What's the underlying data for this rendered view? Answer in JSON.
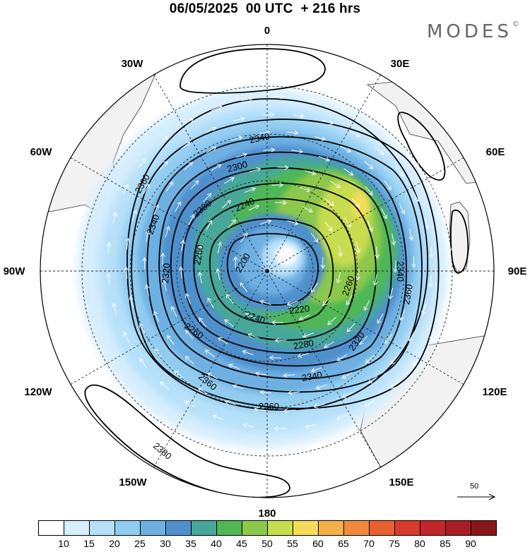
{
  "header": {
    "title": "06/05/2025  00 UTC  + 216 hrs",
    "brand": "MODES",
    "brand_mark": "©"
  },
  "map": {
    "projection": "polar-stereographic-south",
    "longitude_labels": [
      "0",
      "30E",
      "60E",
      "90E",
      "120E",
      "150E",
      "180",
      "150W",
      "120W",
      "90W",
      "60W",
      "30W"
    ],
    "contour_labels": [
      "2340",
      "2360",
      "2300",
      "2340",
      "2380",
      "2240",
      "2260",
      "2200",
      "2320",
      "2340",
      "2260",
      "2360",
      "2220",
      "2240",
      "2260",
      "2280",
      "2320",
      "2340",
      "2360",
      "2360",
      "2380"
    ],
    "land_color": "#f2f2f2",
    "coast_color": "#333333",
    "grid_style": "dashed"
  },
  "vector_reference": {
    "label": "50"
  },
  "legend": {
    "colors": [
      "#ffffff",
      "#d6eefd",
      "#b7e1fa",
      "#92ccf0",
      "#6eb0e2",
      "#4f90cc",
      "#47a89a",
      "#4fb756",
      "#8cc84c",
      "#c8dc4f",
      "#f5dc5a",
      "#f5b04a",
      "#ef8a3d",
      "#e9612f",
      "#d93a2a",
      "#c22628",
      "#a81d24",
      "#8a1519"
    ],
    "tick_labels": [
      "10",
      "15",
      "20",
      "25",
      "30",
      "35",
      "40",
      "45",
      "50",
      "55",
      "60",
      "65",
      "70",
      "75",
      "80",
      "85",
      "90"
    ]
  }
}
